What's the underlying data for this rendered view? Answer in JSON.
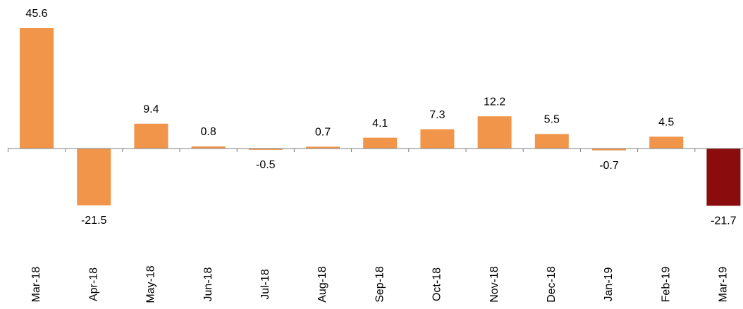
{
  "chart_data": {
    "type": "bar",
    "categories": [
      "Mar-18",
      "Apr-18",
      "May-18",
      "Jun-18",
      "Jul-18",
      "Aug-18",
      "Sep-18",
      "Oct-18",
      "Nov-18",
      "Dec-18",
      "Jan-19",
      "Feb-19",
      "Mar-19"
    ],
    "values": [
      45.6,
      -21.5,
      9.4,
      0.8,
      -0.5,
      0.7,
      4.1,
      7.3,
      12.2,
      5.5,
      -0.7,
      4.5,
      -21.7
    ],
    "colors": [
      "#f0954a",
      "#f0954a",
      "#f0954a",
      "#f0954a",
      "#f0954a",
      "#f0954a",
      "#f0954a",
      "#f0954a",
      "#f0954a",
      "#f0954a",
      "#f0954a",
      "#f0954a",
      "#8b0c0c"
    ]
  }
}
